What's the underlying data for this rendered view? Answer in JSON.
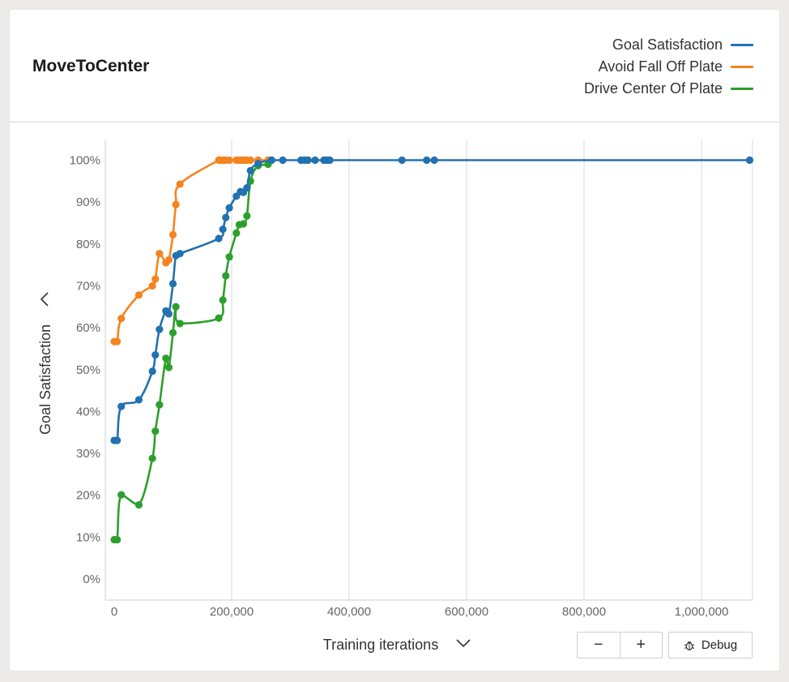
{
  "card": {
    "title": "MoveToCenter"
  },
  "controls": {
    "zoom_out_label": "−",
    "zoom_in_label": "+",
    "debug_label": "Debug",
    "debug_icon": "bug-icon"
  },
  "colors": {
    "goal": "#2271b1",
    "avoid": "#f5841f",
    "drive": "#2ca02c",
    "grid": "#d9d9d9",
    "axis_text": "#666666"
  },
  "chart_data": {
    "type": "line",
    "xlabel": "Training iterations",
    "ylabel": "Goal Satisfaction",
    "xlim": [
      -10000,
      1085000
    ],
    "ylim": [
      0,
      100
    ],
    "x_ticks": [
      0,
      200000,
      400000,
      600000,
      800000,
      1000000
    ],
    "x_tick_labels": [
      "0",
      "200,000",
      "400,000",
      "600,000",
      "800,000",
      "1,000,000"
    ],
    "y_ticks": [
      0,
      10,
      20,
      30,
      40,
      50,
      60,
      70,
      80,
      90,
      100
    ],
    "y_tick_labels": [
      "0%",
      "10%",
      "20%",
      "30%",
      "40%",
      "50%",
      "60%",
      "70%",
      "80%",
      "90%",
      "100%"
    ],
    "grid": "vertical",
    "legend_position": "top-right",
    "series": [
      {
        "name": "Avoid Fall Off Plate",
        "color": "#f5841f",
        "points": [
          [
            0,
            56.7
          ],
          [
            5000,
            56.7
          ],
          [
            12000,
            62.2
          ],
          [
            42000,
            67.8
          ],
          [
            65000,
            70.0
          ],
          [
            70000,
            71.6
          ],
          [
            77000,
            77.7
          ],
          [
            88000,
            75.5
          ],
          [
            93000,
            76.2
          ],
          [
            100000,
            82.2
          ],
          [
            105000,
            89.4
          ],
          [
            112000,
            94.3
          ],
          [
            178000,
            100
          ],
          [
            182000,
            100
          ],
          [
            186000,
            100
          ],
          [
            190000,
            100
          ],
          [
            196000,
            100
          ],
          [
            208000,
            100
          ],
          [
            213000,
            100
          ],
          [
            218000,
            100
          ],
          [
            222000,
            100
          ],
          [
            226000,
            100
          ],
          [
            232000,
            100
          ],
          [
            245000,
            100
          ],
          [
            262000,
            100
          ]
        ]
      },
      {
        "name": "Drive Center Of Plate",
        "color": "#2ca02c",
        "points": [
          [
            0,
            9.4
          ],
          [
            5000,
            9.4
          ],
          [
            12000,
            20.1
          ],
          [
            42000,
            17.7
          ],
          [
            65000,
            28.8
          ],
          [
            70000,
            35.3
          ],
          [
            77000,
            41.6
          ],
          [
            88000,
            52.7
          ],
          [
            93000,
            50.5
          ],
          [
            100000,
            58.8
          ],
          [
            105000,
            65.0
          ],
          [
            112000,
            61.0
          ],
          [
            178000,
            62.3
          ],
          [
            185000,
            66.6
          ],
          [
            190000,
            72.4
          ],
          [
            196000,
            76.9
          ],
          [
            208000,
            82.6
          ],
          [
            213000,
            84.6
          ],
          [
            220000,
            84.8
          ],
          [
            226000,
            86.7
          ],
          [
            232000,
            95.0
          ],
          [
            245000,
            98.7
          ],
          [
            262000,
            99.0
          ],
          [
            268000,
            100
          ]
        ]
      },
      {
        "name": "Goal Satisfaction",
        "color": "#2271b1",
        "points": [
          [
            0,
            33.1
          ],
          [
            5000,
            33.1
          ],
          [
            12000,
            41.2
          ],
          [
            42000,
            42.8
          ],
          [
            65000,
            49.6
          ],
          [
            70000,
            53.5
          ],
          [
            77000,
            59.6
          ],
          [
            88000,
            64.0
          ],
          [
            93000,
            63.3
          ],
          [
            100000,
            70.5
          ],
          [
            105000,
            77.2
          ],
          [
            112000,
            77.7
          ],
          [
            178000,
            81.3
          ],
          [
            185000,
            83.5
          ],
          [
            190000,
            86.3
          ],
          [
            196000,
            88.6
          ],
          [
            208000,
            91.4
          ],
          [
            215000,
            92.5
          ],
          [
            220000,
            92.3
          ],
          [
            226000,
            93.4
          ],
          [
            232000,
            97.5
          ],
          [
            245000,
            99.2
          ],
          [
            268000,
            100
          ],
          [
            287000,
            100
          ],
          [
            318000,
            100
          ],
          [
            324000,
            100
          ],
          [
            330000,
            100
          ],
          [
            342000,
            100
          ],
          [
            357000,
            100
          ],
          [
            362000,
            100
          ],
          [
            367000,
            100
          ],
          [
            490000,
            100
          ],
          [
            532000,
            100
          ],
          [
            545000,
            100
          ],
          [
            1082000,
            100
          ]
        ]
      }
    ]
  }
}
